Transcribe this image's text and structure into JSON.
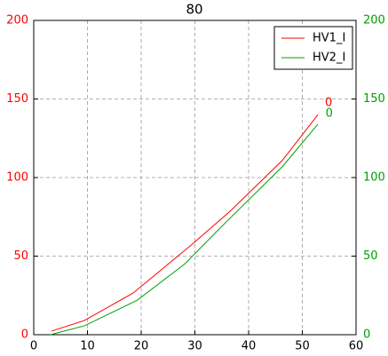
{
  "chart_data": {
    "type": "line",
    "title": "80",
    "xlim": [
      0,
      60
    ],
    "xticks": [
      0,
      10,
      20,
      30,
      40,
      50,
      60
    ],
    "ylim": [
      0,
      200
    ],
    "yticks": [
      0,
      50,
      100,
      150,
      200
    ],
    "ytick_color": "#ff0000",
    "y2lim": [
      0,
      200
    ],
    "y2ticks": [
      0,
      50,
      100,
      150,
      200
    ],
    "y2tick_color": "#00a000",
    "grid": true,
    "legend": "upper right",
    "series": [
      {
        "name": "HV1_I",
        "color": "#ff0000",
        "x": [
          3.3,
          9.4,
          18.5,
          29.3,
          36.7,
          46.3,
          52.9
        ],
        "values": [
          2.3,
          9,
          26.5,
          57,
          79,
          111,
          140
        ]
      },
      {
        "name": "HV2_I",
        "color": "#00a000",
        "axis": "y2",
        "x": [
          3.1,
          9.4,
          19.3,
          28.1,
          35.9,
          46.3,
          52.9
        ],
        "values": [
          0,
          5.6,
          22,
          45,
          72,
          107,
          134
        ]
      }
    ],
    "annotations": [
      {
        "text": "0",
        "x": 54.9,
        "y": 147.5,
        "color": "#ff0000"
      },
      {
        "text": "0",
        "x": 55,
        "y": 140.7,
        "color": "#00a000"
      }
    ]
  }
}
